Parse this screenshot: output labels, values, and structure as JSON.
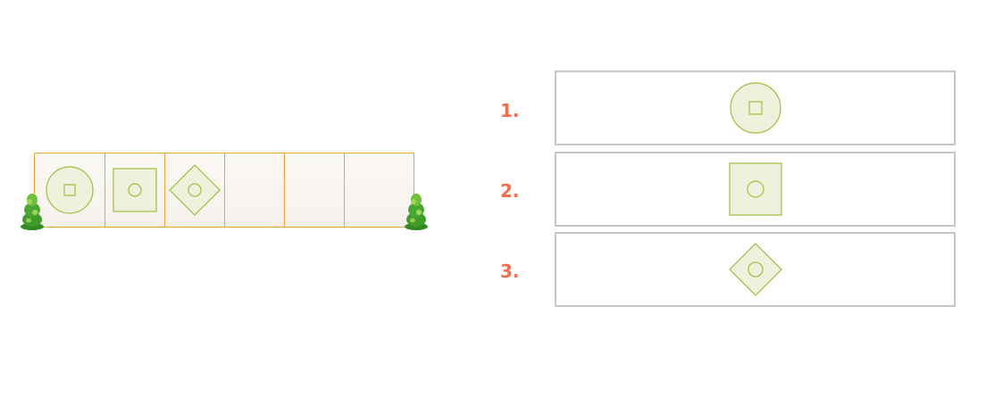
{
  "options": [
    {
      "number": "1.",
      "shape": "circle-with-square"
    },
    {
      "number": "2.",
      "shape": "square-with-circle"
    },
    {
      "number": "3.",
      "shape": "diamond-with-circle"
    }
  ],
  "sequence": {
    "cells": [
      "circle-with-square",
      "square-with-circle",
      "diamond-with-circle",
      "empty",
      "empty",
      "empty"
    ]
  },
  "colors": {
    "shape_fill": "#eef2dc",
    "shape_stroke": "#9cc03b",
    "cell_border": "#f0a13a",
    "number": "#f26e4a",
    "option_border": "#c7c7c7"
  }
}
